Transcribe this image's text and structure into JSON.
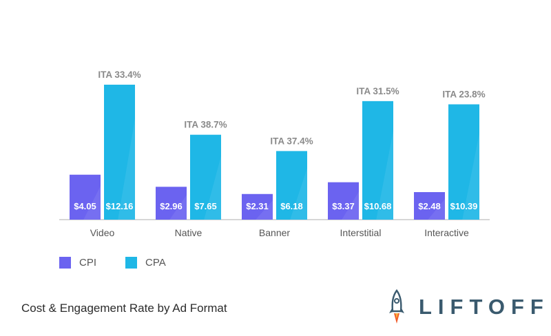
{
  "chart_data": {
    "type": "bar",
    "categories": [
      "Video",
      "Native",
      "Banner",
      "Interstitial",
      "Interactive"
    ],
    "series": [
      {
        "name": "CPI",
        "values": [
          4.05,
          2.96,
          2.31,
          3.37,
          2.48
        ],
        "labels": [
          "$4.05",
          "$2.96",
          "$2.31",
          "$3.37",
          "$2.48"
        ],
        "color": "#6b63f0"
      },
      {
        "name": "CPA",
        "values": [
          12.16,
          7.65,
          6.18,
          10.68,
          10.39
        ],
        "labels": [
          "$12.16",
          "$7.65",
          "$6.18",
          "$10.68",
          "$10.39"
        ],
        "color": "#1fb7e6"
      }
    ],
    "annotations": [
      "ITA 33.4%",
      "ITA 38.7%",
      "ITA 37.4%",
      "ITA 31.5%",
      "ITA 23.8%"
    ],
    "ylim": [
      0,
      12.16
    ],
    "grid": false,
    "legend": "bottom-left"
  },
  "legend": {
    "items": [
      {
        "label": "CPI",
        "color": "#6b63f0"
      },
      {
        "label": "CPA",
        "color": "#1fb7e6"
      }
    ]
  },
  "caption": "Cost & Engagement Rate by Ad Format",
  "logo": {
    "text": "LIFTOFF",
    "icon": "rocket-icon"
  }
}
